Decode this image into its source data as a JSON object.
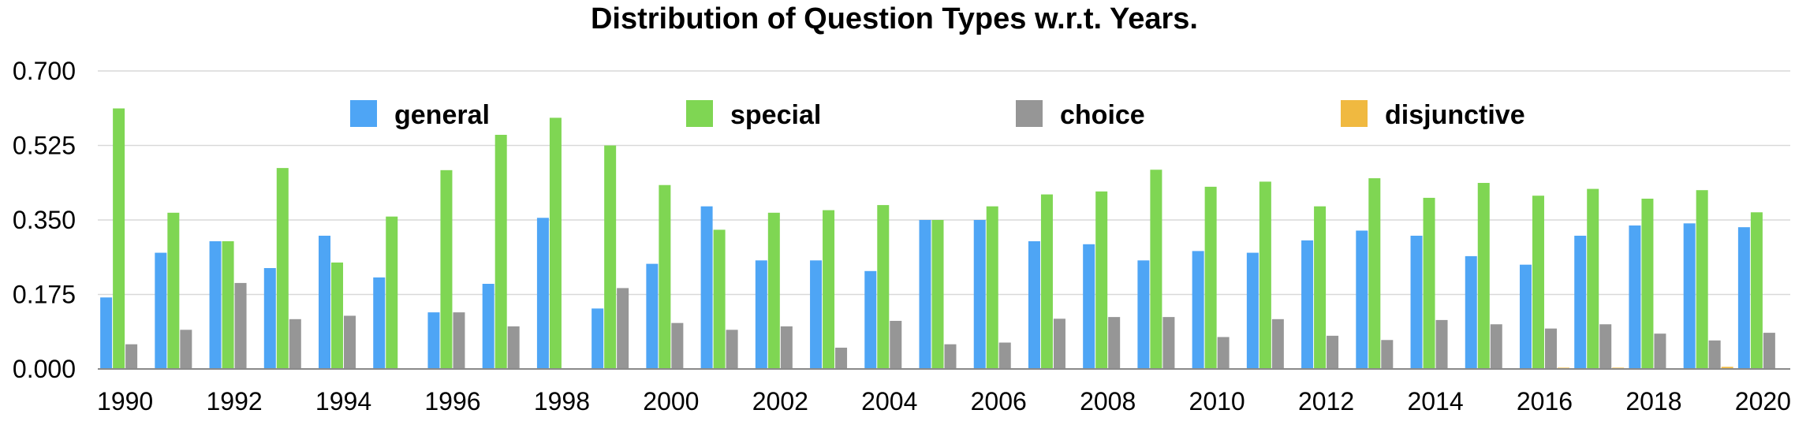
{
  "chart_data": {
    "type": "bar",
    "title": "Distribution of Question Types w.r.t. Years.",
    "xlabel": "",
    "ylabel": "",
    "ylim": [
      0,
      0.7
    ],
    "yticks": [
      "0.000",
      "0.175",
      "0.350",
      "0.525",
      "0.700"
    ],
    "grid": true,
    "legend_position": "top",
    "categories": [
      "1990",
      "1991",
      "1992",
      "1993",
      "1994",
      "1995",
      "1996",
      "1997",
      "1998",
      "1999",
      "2000",
      "2001",
      "2002",
      "2003",
      "2004",
      "2005",
      "2006",
      "2007",
      "2008",
      "2009",
      "2010",
      "2011",
      "2012",
      "2013",
      "2014",
      "2015",
      "2016",
      "2017",
      "2018",
      "2019",
      "2020"
    ],
    "xtick_labels": [
      "1990",
      "1992",
      "1994",
      "1996",
      "1998",
      "2000",
      "2002",
      "2004",
      "2006",
      "2008",
      "2010",
      "2012",
      "2014",
      "2016",
      "2018",
      "2020"
    ],
    "series": [
      {
        "name": "general",
        "color": "#4ea5f5",
        "values": [
          0.168,
          0.273,
          0.3,
          0.237,
          0.313,
          0.215,
          0.133,
          0.2,
          0.355,
          0.142,
          0.247,
          0.382,
          0.255,
          0.255,
          0.23,
          0.35,
          0.35,
          0.3,
          0.293,
          0.255,
          0.277,
          0.273,
          0.302,
          0.325,
          0.313,
          0.265,
          0.245,
          0.313,
          0.337,
          0.342,
          0.333
        ]
      },
      {
        "name": "special",
        "color": "#7fd653",
        "values": [
          0.612,
          0.367,
          0.3,
          0.472,
          0.25,
          0.358,
          0.467,
          0.55,
          0.59,
          0.525,
          0.432,
          0.327,
          0.367,
          0.373,
          0.385,
          0.35,
          0.382,
          0.41,
          0.417,
          0.468,
          0.428,
          0.44,
          0.382,
          0.448,
          0.402,
          0.437,
          0.407,
          0.423,
          0.4,
          0.42,
          0.368
        ]
      },
      {
        "name": "choice",
        "color": "#969696",
        "values": [
          0.058,
          0.092,
          0.202,
          0.117,
          0.125,
          0.0,
          0.133,
          0.1,
          0.0,
          0.19,
          0.108,
          0.092,
          0.1,
          0.05,
          0.113,
          0.058,
          0.062,
          0.118,
          0.122,
          0.122,
          0.075,
          0.117,
          0.078,
          0.068,
          0.115,
          0.105,
          0.095,
          0.105,
          0.083,
          0.067,
          0.085
        ]
      },
      {
        "name": "disjunctive",
        "color": "#f0b940",
        "values": [
          0,
          0,
          0,
          0,
          0,
          0,
          0,
          0,
          0,
          0,
          0,
          0,
          0,
          0,
          0,
          0,
          0,
          0,
          0,
          0,
          0,
          0,
          0,
          0,
          0,
          0,
          0.003,
          0.003,
          0,
          0.005,
          0
        ]
      }
    ]
  }
}
